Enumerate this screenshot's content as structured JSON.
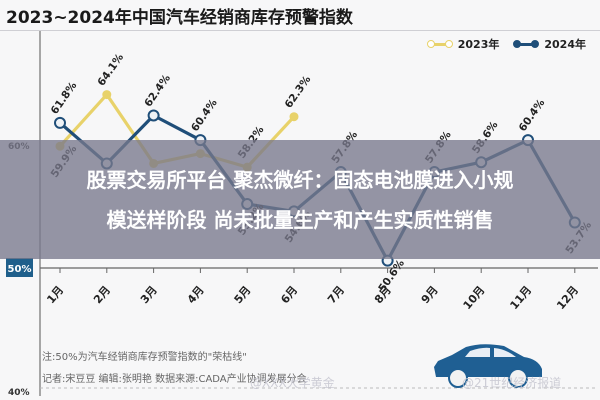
{
  "header": {
    "title": "2023~2024年中国汽车经销商库存预警指数"
  },
  "legend": [
    {
      "label": "2023年",
      "color": "#e8d26a"
    },
    {
      "label": "2024年",
      "color": "#1f4e79"
    }
  ],
  "headline": {
    "line1": "股票交易所平台 聚杰微纤：固态电池膜进入小规",
    "line2": "模送样阶段 尚未批量生产和产生实质性销售"
  },
  "notes": {
    "line1": "注:50%为汽车经销商库存预警指数的\"荣枯线\"",
    "line2": "记者:宋豆豆   编辑:张明艳   数据来源:CADA产业协调发展分会"
  },
  "watermarks": {
    "left": "@XXX大学黄金",
    "right": "@21世纪经济报道"
  },
  "chart_data": {
    "type": "line",
    "title": "2023~2024年中国汽车经销商库存预警指数",
    "xlabel": "",
    "ylabel": "",
    "categories": [
      "1月",
      "2月",
      "3月",
      "4月",
      "5月",
      "6月",
      "7月",
      "8月",
      "9月",
      "10月",
      "11月",
      "12月"
    ],
    "series": [
      {
        "name": "2023年",
        "color": "#e8d26a",
        "values": [
          59.9,
          64.1,
          58.5,
          59.3,
          58.2,
          62.3,
          null,
          null,
          null,
          null,
          null,
          null
        ],
        "labels": [
          "59.9%",
          "64.1%",
          "",
          "",
          "58.2%",
          "62.3%",
          "",
          "",
          "",
          "",
          "",
          ""
        ]
      },
      {
        "name": "2024年",
        "color": "#1f4e79",
        "values": [
          61.8,
          58.5,
          62.4,
          60.4,
          55.2,
          54.6,
          57.8,
          50.6,
          57.8,
          58.6,
          60.4,
          53.7
        ],
        "labels": [
          "61.8%",
          "",
          "62.4%",
          "60.4%",
          "55.2%",
          "54.6%",
          "57.8%",
          "50.6%",
          "57.8%",
          "58.6%",
          "60.4%",
          "53.7%"
        ]
      }
    ],
    "yticks": [
      "40%",
      "50%",
      "60%"
    ],
    "ylim": [
      40,
      66
    ],
    "highlight_tick": "50%",
    "highlight_color": "#1f5f8b",
    "grid": false,
    "legend_position": "top-right",
    "annotation": "50%为汽车经销商库存预警指数的\"荣枯线\""
  }
}
